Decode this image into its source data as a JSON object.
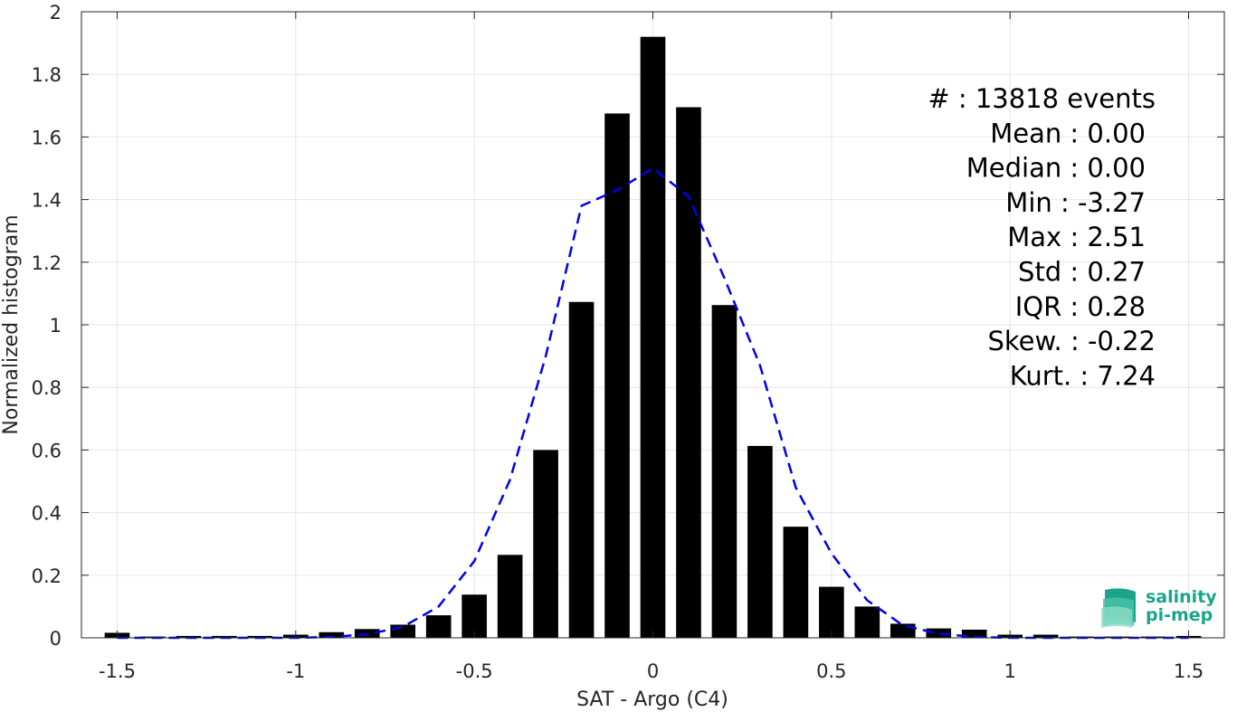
{
  "chart_data": {
    "type": "bar",
    "xlabel": "SAT - Argo (C4)",
    "ylabel": "Normalized histogram",
    "xlim": [
      -1.6,
      1.6
    ],
    "ylim": [
      0,
      2
    ],
    "xticks": [
      -1.5,
      -1,
      -0.5,
      0,
      0.5,
      1,
      1.5
    ],
    "xtick_labels": [
      "-1.5",
      "-1",
      "-0.5",
      "0",
      "0.5",
      "1",
      "1.5"
    ],
    "yticks": [
      0,
      0.2,
      0.4,
      0.6,
      0.8,
      1,
      1.2,
      1.4,
      1.6,
      1.8,
      2
    ],
    "ytick_labels": [
      "0",
      "0.2",
      "0.4",
      "0.6",
      "0.8",
      "1",
      "1.2",
      "1.4",
      "1.6",
      "1.8",
      "2"
    ],
    "grid": true,
    "bar_color": "#000000",
    "bar_width": 0.07,
    "series": [
      {
        "x": [
          -1.5,
          -1.4,
          -1.3,
          -1.2,
          -1.1,
          -1.0,
          -0.9,
          -0.8,
          -0.7,
          -0.6,
          -0.5,
          -0.4,
          -0.3,
          -0.2,
          -0.1,
          0.0,
          0.1,
          0.2,
          0.3,
          0.4,
          0.5,
          0.6,
          0.7,
          0.8,
          0.9,
          1.0,
          1.1,
          1.2,
          1.3,
          1.4,
          1.5
        ],
        "values": [
          0.016,
          0.004,
          0.006,
          0.006,
          0.006,
          0.01,
          0.018,
          0.028,
          0.042,
          0.072,
          0.138,
          0.265,
          0.6,
          1.073,
          1.675,
          1.92,
          1.695,
          1.063,
          0.613,
          0.355,
          0.163,
          0.1,
          0.045,
          0.03,
          0.026,
          0.01,
          0.01,
          0.004,
          0.004,
          0.004,
          0.006
        ]
      }
    ],
    "fit_curve": {
      "style": "dashed",
      "color": "#0000ee",
      "x": [
        -1.5,
        -1.4,
        -1.3,
        -1.2,
        -1.1,
        -1.0,
        -0.9,
        -0.8,
        -0.7,
        -0.6,
        -0.5,
        -0.4,
        -0.3,
        -0.2,
        -0.1,
        0.0,
        0.1,
        0.2,
        0.3,
        0.4,
        0.5,
        0.6,
        0.7,
        0.8,
        0.9,
        1.0,
        1.1,
        1.2,
        1.3,
        1.4,
        1.5
      ],
      "y": [
        0.0,
        0.0,
        0.0,
        0.0,
        0.0,
        0.0,
        0.003,
        0.011,
        0.035,
        0.1,
        0.245,
        0.505,
        0.9,
        1.38,
        1.43,
        1.5,
        1.41,
        1.15,
        0.87,
        0.48,
        0.27,
        0.12,
        0.04,
        0.013,
        0.003,
        0.0,
        0.0,
        0.0,
        0.0,
        0.0,
        0.0
      ]
    },
    "annotations": [
      "#  : 13818 events",
      "Mean : 0.00",
      "Median : 0.00",
      "Min : -3.27",
      "Max : 2.51",
      "Std : 0.27",
      "IQR : 0.28",
      "Skew. : -0.22",
      "Kurt. : 7.24"
    ]
  },
  "logo": {
    "line1": "salinity",
    "line2": "pi-mep",
    "color": "#1aa58a"
  }
}
